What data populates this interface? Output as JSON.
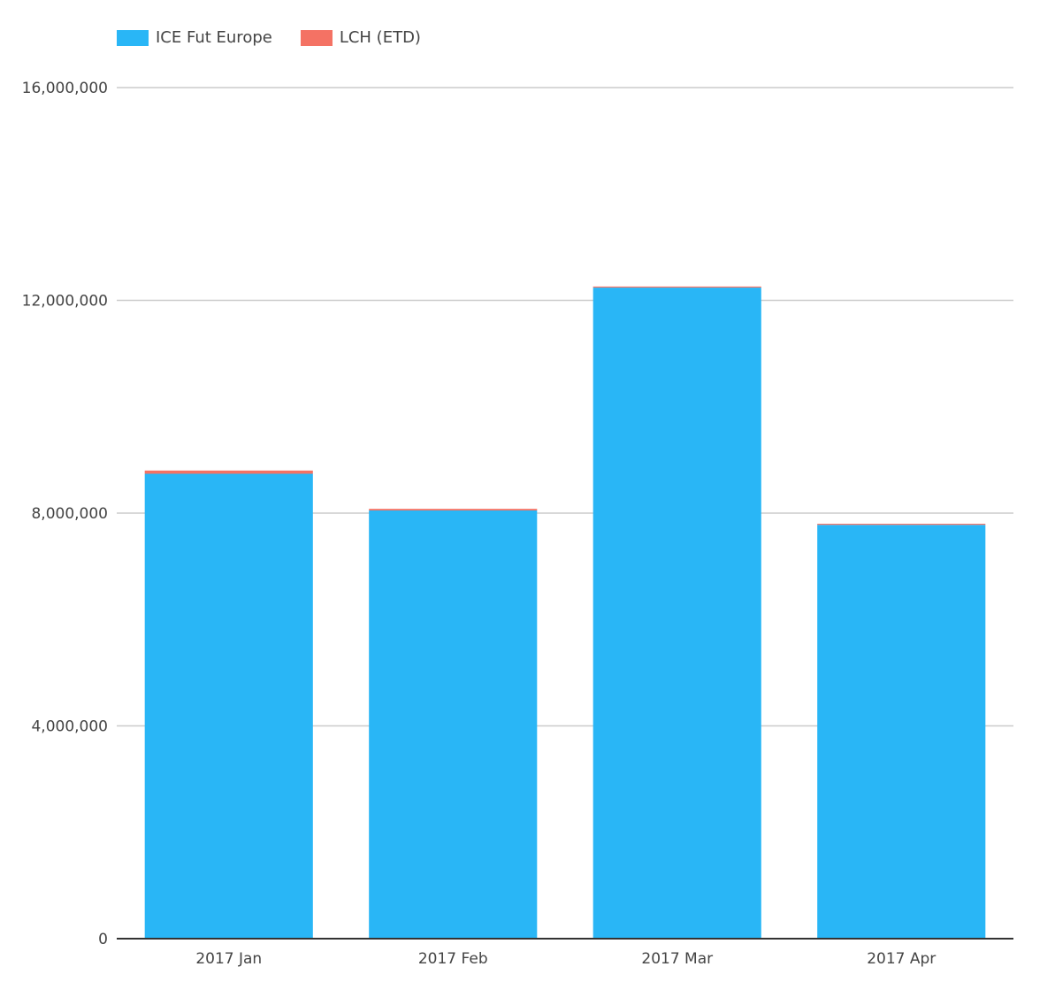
{
  "chart_data": {
    "type": "bar",
    "stacked": true,
    "categories": [
      "2017 Jan",
      "2017 Feb",
      "2017 Mar",
      "2017 Apr"
    ],
    "series": [
      {
        "name": "ICE Fut Europe",
        "color": "#29b6f6",
        "values": [
          8740000,
          8050000,
          12240000,
          7780000
        ]
      },
      {
        "name": "LCH (ETD)",
        "color": "#f47264",
        "values": [
          60000,
          30000,
          20000,
          20000
        ]
      }
    ],
    "yticks": [
      0,
      4000000,
      8000000,
      12000000,
      16000000
    ],
    "ytick_labels": [
      "0",
      "4,000,000",
      "8,000,000",
      "12,000,000",
      "16,000,000"
    ],
    "ylim": [
      0,
      16000000
    ],
    "grid": true,
    "legend": "top-left",
    "title": "",
    "xlabel": "",
    "ylabel": ""
  }
}
